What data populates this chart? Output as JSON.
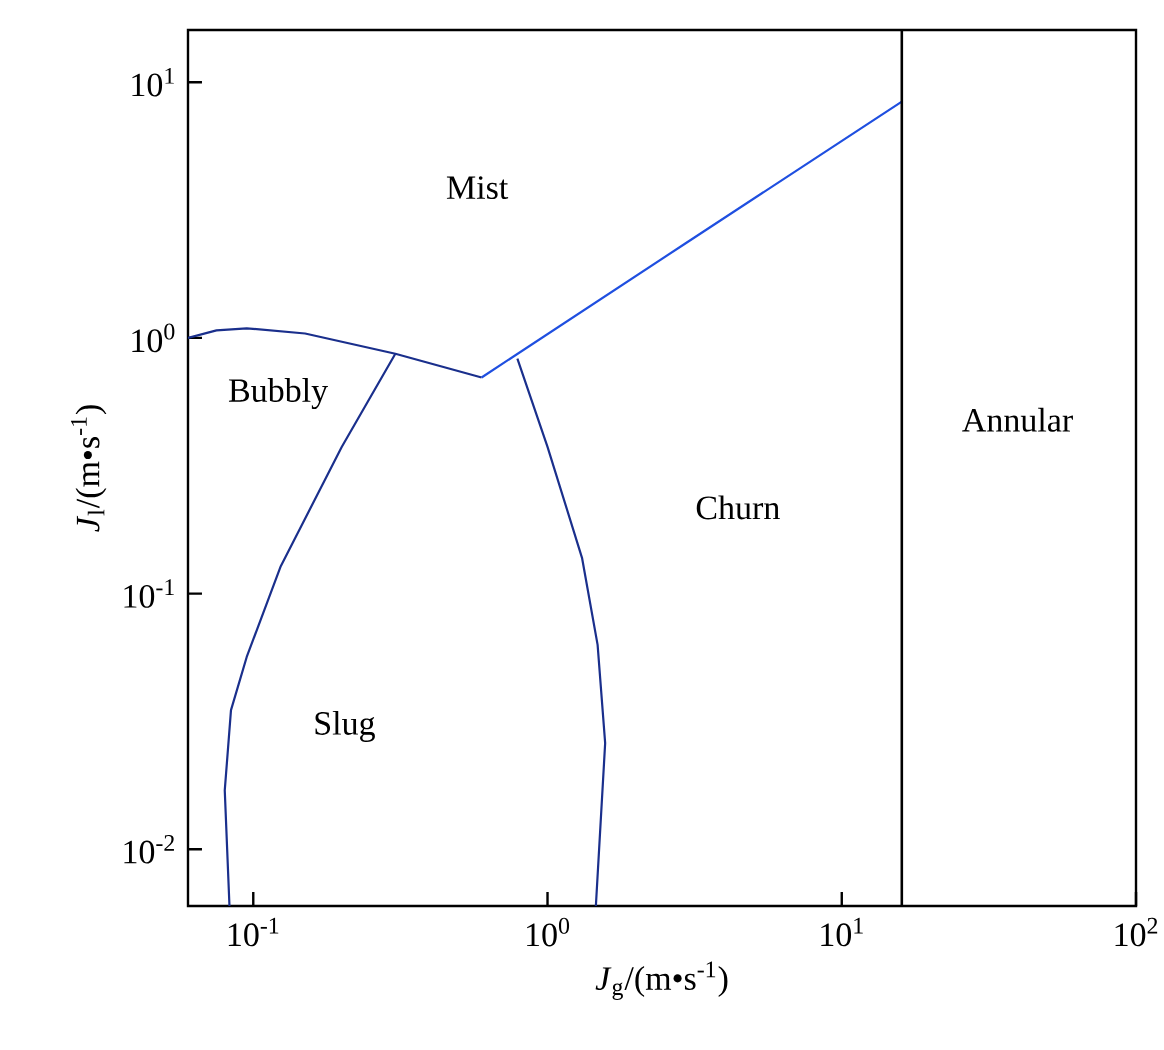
{
  "chart_data": {
    "type": "line",
    "log": "xy",
    "xlabel": "*J*$_{g}$/(m•s$^{-1}$)",
    "ylabel": "*J*$_{l}$/(m•s$^{-1}$)",
    "xlim": [
      0.06,
      100
    ],
    "ylim": [
      0.006,
      16
    ],
    "xticks": [
      {
        "value": 0.1,
        "label": "10$^{-1}$"
      },
      {
        "value": 1,
        "label": "10$^{0}$"
      },
      {
        "value": 10,
        "label": "10$^{1}$"
      },
      {
        "value": 100,
        "label": "10$^{2}$"
      }
    ],
    "yticks": [
      {
        "value": 0.01,
        "label": "10$^{-2}$"
      },
      {
        "value": 0.1,
        "label": "10$^{-1}$"
      },
      {
        "value": 1,
        "label": "10$^{0}$"
      },
      {
        "value": 10,
        "label": "10$^{1}$"
      }
    ],
    "grid": false,
    "legend": false,
    "marker": "none",
    "line_style": "solid",
    "series": [
      {
        "color": "#1a2f8c",
        "x": [
          0.06,
          0.075,
          0.095,
          0.15,
          0.304,
          0.597
        ],
        "values": [
          1.0,
          1.07,
          1.09,
          1.04,
          0.867,
          0.7
        ]
      },
      {
        "color": "#1f4fe0",
        "x": [
          0.597,
          2.94,
          16
        ],
        "values": [
          0.7,
          2.34,
          8.4
        ]
      },
      {
        "color": "#1a2f8c",
        "x": [
          0.304,
          0.2,
          0.124,
          0.095,
          0.084,
          0.08,
          0.083
        ],
        "values": [
          0.867,
          0.375,
          0.128,
          0.0565,
          0.035,
          0.017,
          0.006
        ]
      },
      {
        "color": "#1a2f8c",
        "x": [
          0.79,
          1.0,
          1.31,
          1.48,
          1.57,
          1.46
        ],
        "values": [
          0.83,
          0.375,
          0.138,
          0.063,
          0.026,
          0.006
        ]
      }
    ],
    "ref_lines": [
      {
        "axis": "x",
        "value": 16,
        "color": "#000000"
      }
    ],
    "annotations": [
      "Mist",
      "Bubbly",
      "Slug",
      "Churn",
      "Annular"
    ]
  }
}
